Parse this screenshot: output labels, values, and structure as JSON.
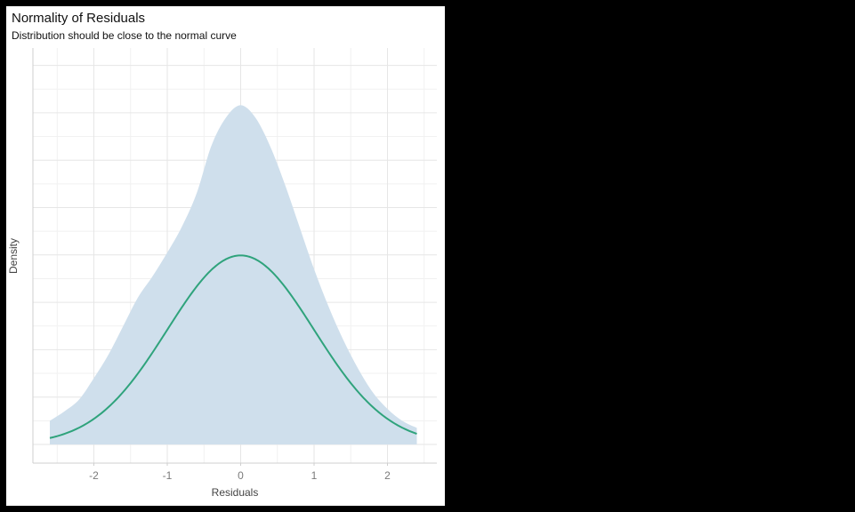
{
  "chart_data": {
    "type": "area",
    "title": "Normality of Residuals",
    "subtitle": "Distribution should be close to the normal curve",
    "xlabel": "Residuals",
    "ylabel": "Density",
    "xlim": [
      -2.85,
      2.7
    ],
    "x_ticks": [
      -2,
      -1,
      0,
      1,
      2
    ],
    "x_tick_labels": [
      "-2",
      "-1",
      "0",
      "1",
      "2"
    ],
    "y_tick_labels": [],
    "grid": true,
    "legend": "none",
    "series": [
      {
        "kind": "density-area",
        "color": "#cfdfec",
        "x": [
          -2.6,
          -2.4,
          -2.2,
          -2.0,
          -1.8,
          -1.6,
          -1.4,
          -1.2,
          -1.0,
          -0.8,
          -0.6,
          -0.4,
          -0.2,
          0.0,
          0.2,
          0.4,
          0.6,
          0.8,
          1.0,
          1.2,
          1.4,
          1.6,
          1.8,
          2.0,
          2.2,
          2.4
        ],
        "y": [
          0.05,
          0.07,
          0.095,
          0.14,
          0.19,
          0.25,
          0.31,
          0.355,
          0.405,
          0.46,
          0.53,
          0.63,
          0.69,
          0.716,
          0.69,
          0.63,
          0.55,
          0.46,
          0.37,
          0.29,
          0.22,
          0.16,
          0.11,
          0.075,
          0.05,
          0.035
        ]
      },
      {
        "kind": "normal-curve",
        "color": "#2fa37c",
        "mean": 0,
        "sd": 1,
        "x_range": [
          -2.6,
          2.4
        ]
      }
    ]
  }
}
